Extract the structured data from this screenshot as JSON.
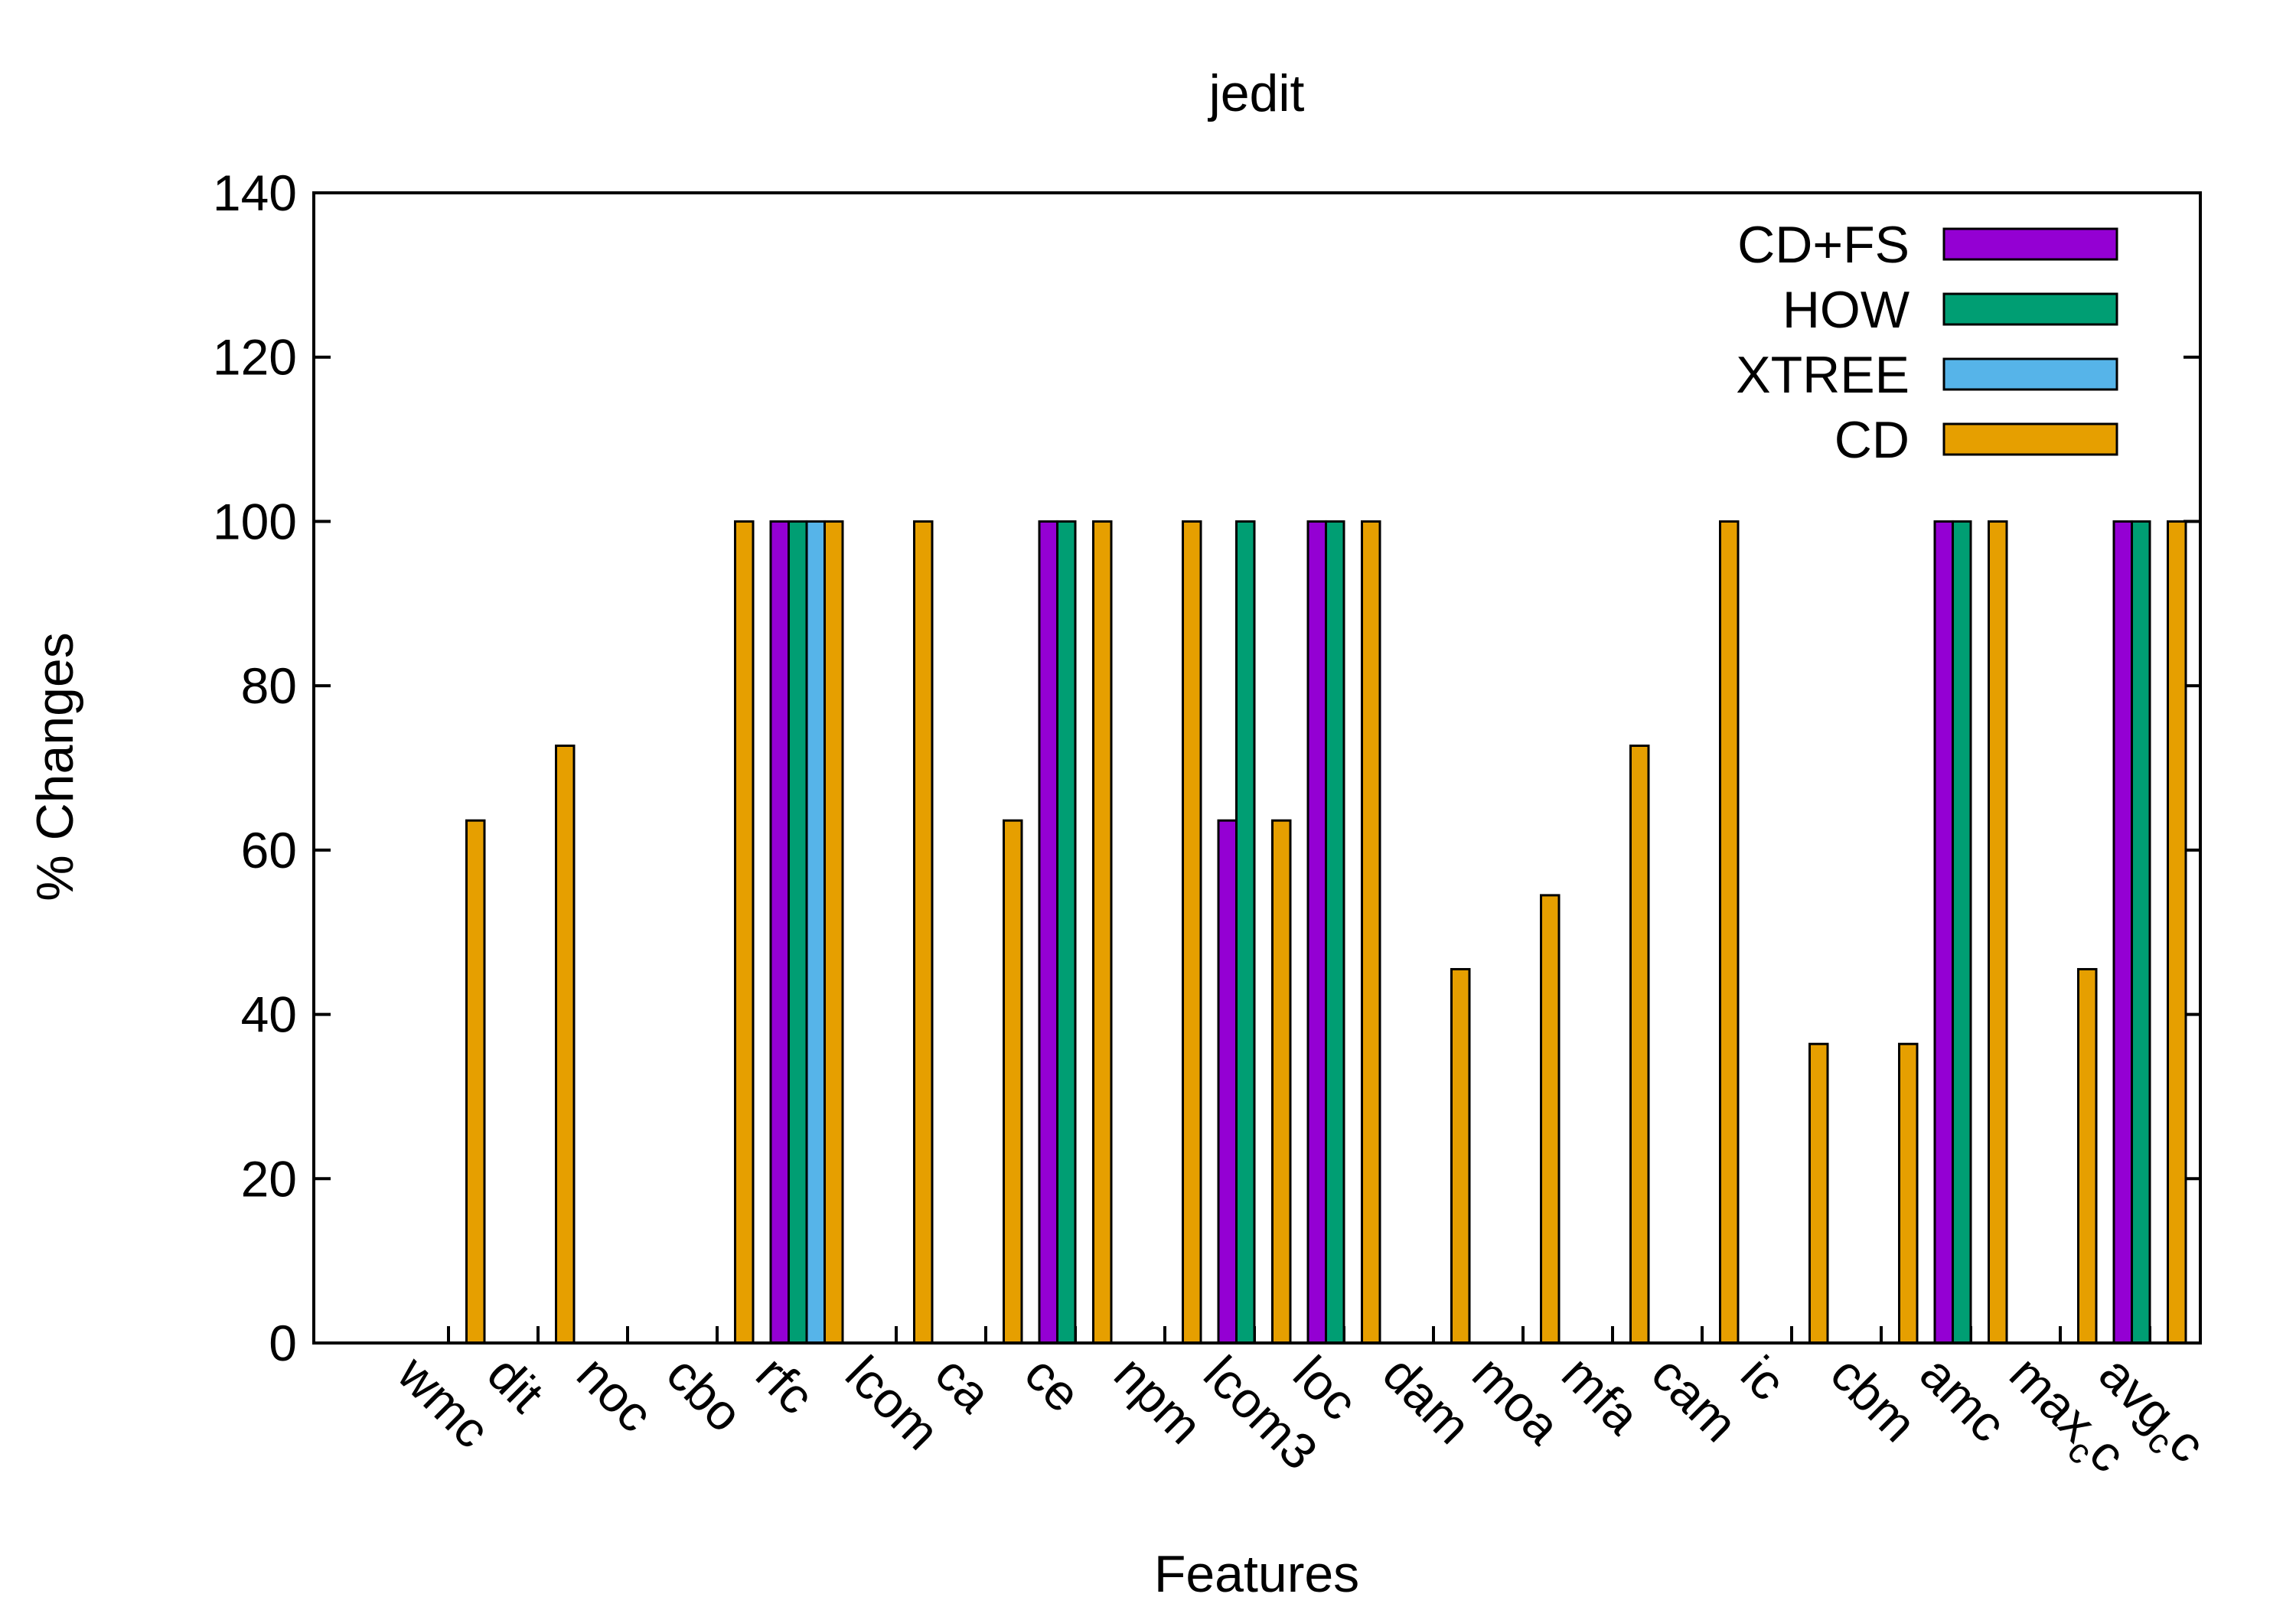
{
  "chart_data": {
    "type": "bar",
    "title": "jedit",
    "xlabel": "Features",
    "ylabel": "% Changes",
    "ylim": [
      0,
      140
    ],
    "yticks": [
      0,
      20,
      40,
      60,
      80,
      100,
      120,
      140
    ],
    "grid": false,
    "legend_position": "top-right",
    "categories": [
      {
        "main": "wmc",
        "sub": ""
      },
      {
        "main": "dit",
        "sub": ""
      },
      {
        "main": "noc",
        "sub": ""
      },
      {
        "main": "cbo",
        "sub": ""
      },
      {
        "main": "rfc",
        "sub": ""
      },
      {
        "main": "lcom",
        "sub": ""
      },
      {
        "main": "ca",
        "sub": ""
      },
      {
        "main": "ce",
        "sub": ""
      },
      {
        "main": "npm",
        "sub": ""
      },
      {
        "main": "lcom3",
        "sub": ""
      },
      {
        "main": "loc",
        "sub": ""
      },
      {
        "main": "dam",
        "sub": ""
      },
      {
        "main": "moa",
        "sub": ""
      },
      {
        "main": "mfa",
        "sub": ""
      },
      {
        "main": "cam",
        "sub": ""
      },
      {
        "main": "ic",
        "sub": ""
      },
      {
        "main": "cbm",
        "sub": ""
      },
      {
        "main": "amc",
        "sub": ""
      },
      {
        "main": "max",
        "sub": "c",
        "tail": "c"
      },
      {
        "main": "avg",
        "sub": "c",
        "tail": "c"
      }
    ],
    "series": [
      {
        "name": "CD+FS",
        "color": "#9400d3",
        "values": [
          0,
          0,
          0,
          0,
          100,
          0,
          0,
          100,
          0,
          63.6,
          100,
          0,
          0,
          0,
          0,
          0,
          0,
          100,
          0,
          100
        ]
      },
      {
        "name": "HOW",
        "color": "#009e73",
        "values": [
          0,
          0,
          0,
          0,
          100,
          0,
          0,
          100,
          0,
          100,
          100,
          0,
          0,
          0,
          0,
          0,
          0,
          100,
          0,
          100
        ]
      },
      {
        "name": "XTREE",
        "color": "#56b4e9",
        "values": [
          0,
          0,
          0,
          0,
          100,
          0,
          0,
          0,
          0,
          0,
          0,
          0,
          0,
          0,
          0,
          0,
          0,
          0,
          0,
          0
        ]
      },
      {
        "name": "CD",
        "color": "#e69f00",
        "values": [
          63.6,
          72.7,
          0,
          100,
          100,
          100,
          63.6,
          100,
          100,
          63.6,
          100,
          45.5,
          54.5,
          72.7,
          100,
          36.4,
          36.4,
          100,
          45.5,
          100
        ]
      }
    ]
  }
}
